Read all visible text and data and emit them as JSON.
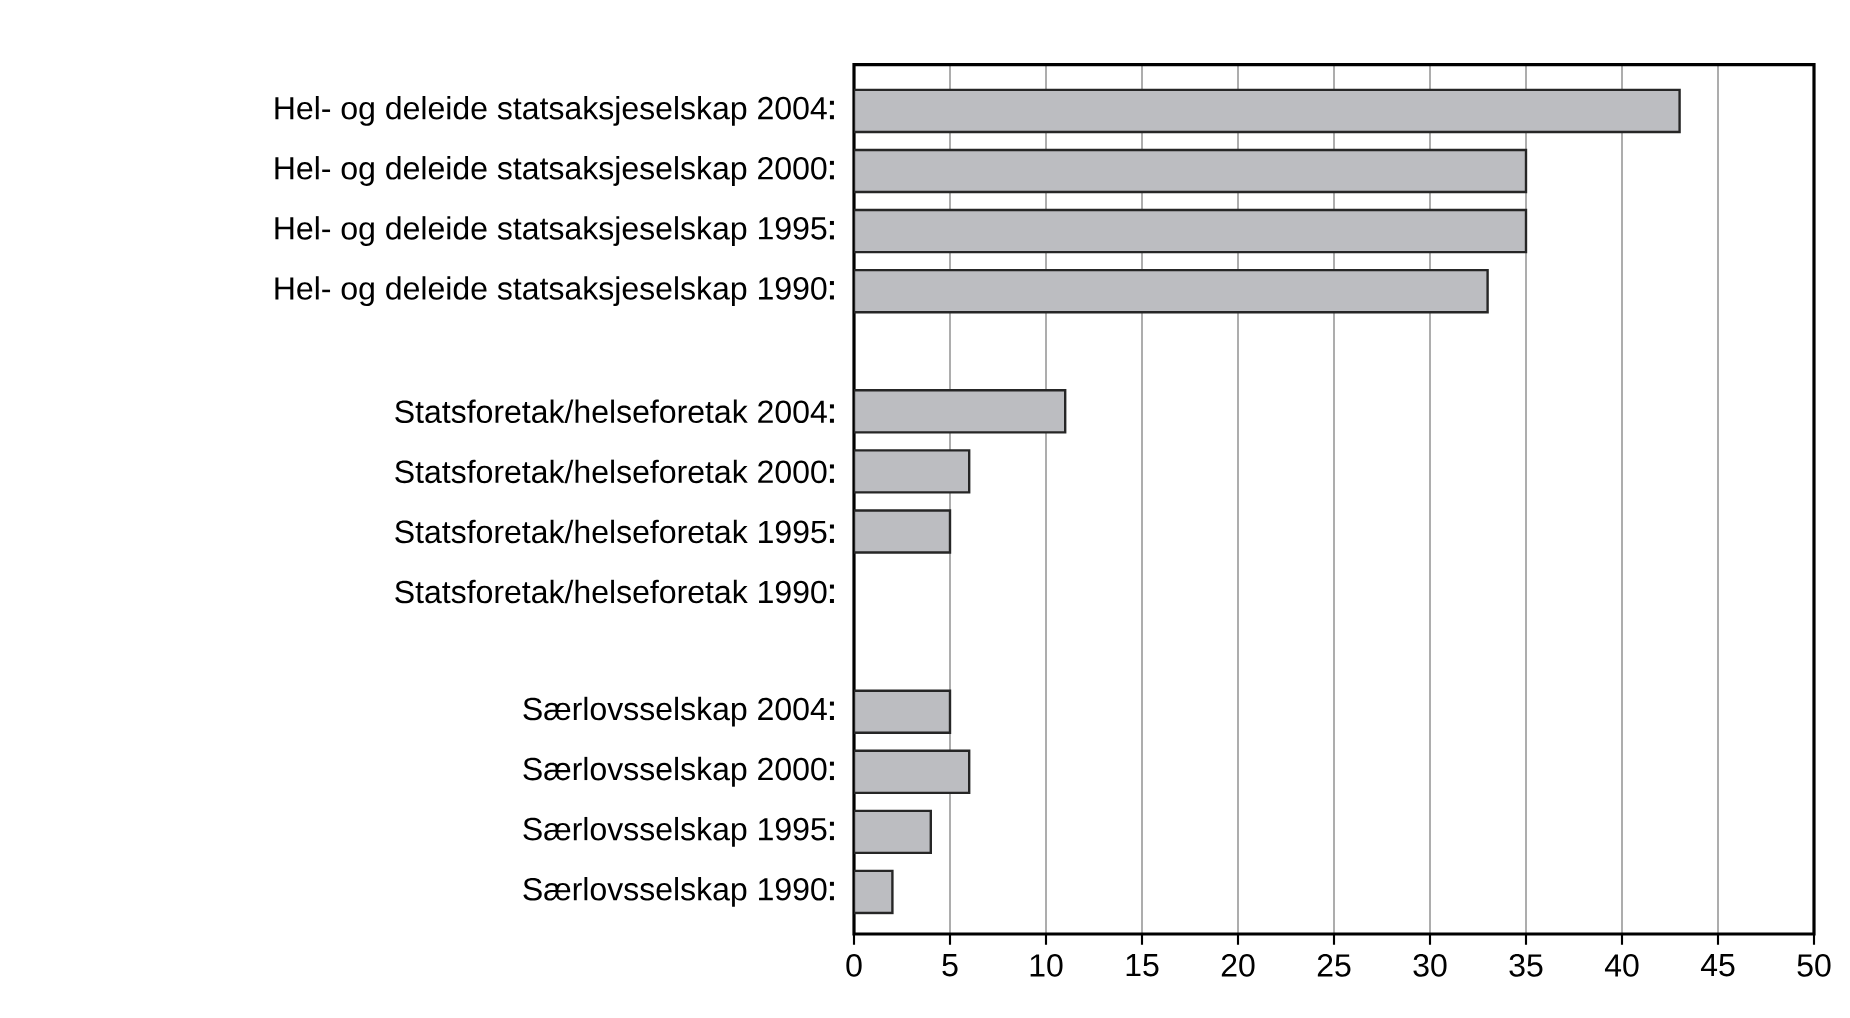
{
  "chart_data": {
    "type": "bar",
    "orientation": "horizontal",
    "categories": [
      "Hel- og deleide statsaksjeselskap 2004",
      "Hel- og deleide statsaksjeselskap 2000",
      "Hel- og deleide statsaksjeselskap 1995",
      "Hel- og deleide statsaksjeselskap 1990",
      null,
      "Statsforetak/helseforetak 2004",
      "Statsforetak/helseforetak 2000",
      "Statsforetak/helseforetak 1995",
      "Statsforetak/helseforetak 1990",
      null,
      "Særlovsselskap 2004",
      "Særlovsselskap 2000",
      "Særlovsselskap 1995",
      "Særlovsselskap 1990"
    ],
    "values": [
      43,
      35,
      35,
      33,
      null,
      11,
      6,
      5,
      null,
      null,
      5,
      6,
      4,
      2
    ],
    "color": "#bcbdc1",
    "xlim": [
      0,
      50
    ],
    "xticks": [
      0,
      5,
      10,
      15,
      20,
      25,
      30,
      35,
      40,
      45,
      50
    ],
    "grid": "x"
  }
}
